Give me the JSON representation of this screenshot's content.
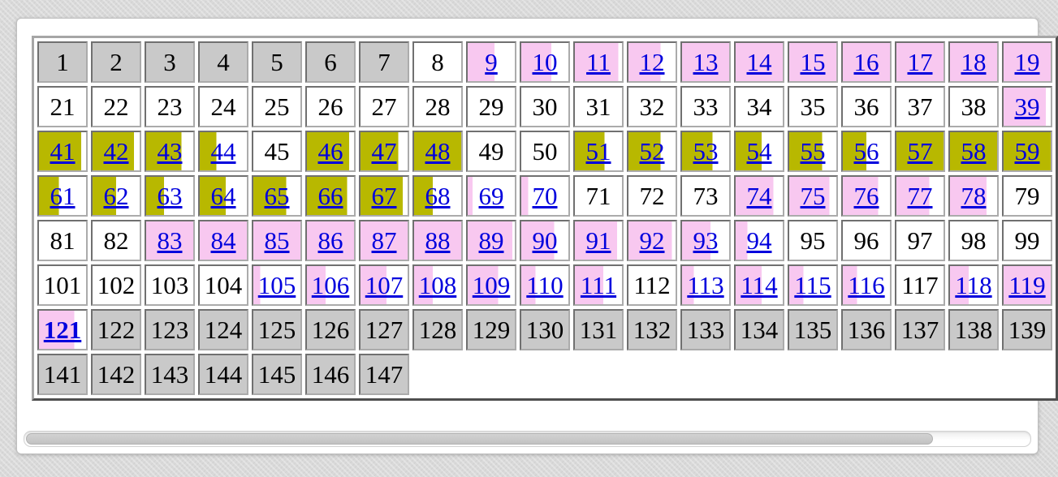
{
  "colors": {
    "gray": "#c9c9c9",
    "white": "#ffffff",
    "olive": "#b8b800",
    "pink": "#f8c8f0",
    "link_blue": "#0000dd",
    "text_black": "#000000"
  },
  "scrollbar": {
    "orientation": "horizontal",
    "thumb_percent": 90,
    "position": "left"
  },
  "grid": {
    "visible_columns": 19,
    "rows": [
      {
        "cells": [
          {
            "n": "1",
            "bg": "gray",
            "fill": 100,
            "link": false
          },
          {
            "n": "2",
            "bg": "gray",
            "fill": 100,
            "link": false
          },
          {
            "n": "3",
            "bg": "gray",
            "fill": 100,
            "link": false
          },
          {
            "n": "4",
            "bg": "gray",
            "fill": 100,
            "link": false
          },
          {
            "n": "5",
            "bg": "gray",
            "fill": 100,
            "link": false
          },
          {
            "n": "6",
            "bg": "gray",
            "fill": 100,
            "link": false
          },
          {
            "n": "7",
            "bg": "gray",
            "fill": 100,
            "link": false
          },
          {
            "n": "8",
            "bg": "white",
            "fill": 100,
            "link": false
          },
          {
            "n": "9",
            "bg": "pink",
            "fill": 57,
            "link": true
          },
          {
            "n": "10",
            "bg": "pink",
            "fill": 64,
            "link": true
          },
          {
            "n": "11",
            "bg": "pink",
            "fill": 92,
            "link": true
          },
          {
            "n": "12",
            "bg": "pink",
            "fill": 68,
            "link": true
          },
          {
            "n": "13",
            "bg": "pink",
            "fill": 100,
            "link": true
          },
          {
            "n": "14",
            "bg": "pink",
            "fill": 100,
            "link": true
          },
          {
            "n": "15",
            "bg": "pink",
            "fill": 100,
            "link": true
          },
          {
            "n": "16",
            "bg": "pink",
            "fill": 100,
            "link": true
          },
          {
            "n": "17",
            "bg": "pink",
            "fill": 100,
            "link": true
          },
          {
            "n": "18",
            "bg": "pink",
            "fill": 100,
            "link": true
          },
          {
            "n": "19",
            "bg": "pink",
            "fill": 100,
            "link": true
          }
        ]
      },
      {
        "cells": [
          {
            "n": "21",
            "bg": "white",
            "fill": 100,
            "link": false
          },
          {
            "n": "22",
            "bg": "white",
            "fill": 100,
            "link": false
          },
          {
            "n": "23",
            "bg": "white",
            "fill": 100,
            "link": false
          },
          {
            "n": "24",
            "bg": "white",
            "fill": 100,
            "link": false
          },
          {
            "n": "25",
            "bg": "white",
            "fill": 100,
            "link": false
          },
          {
            "n": "26",
            "bg": "white",
            "fill": 100,
            "link": false
          },
          {
            "n": "27",
            "bg": "white",
            "fill": 100,
            "link": false
          },
          {
            "n": "28",
            "bg": "white",
            "fill": 100,
            "link": false
          },
          {
            "n": "29",
            "bg": "white",
            "fill": 100,
            "link": false
          },
          {
            "n": "30",
            "bg": "white",
            "fill": 100,
            "link": false
          },
          {
            "n": "31",
            "bg": "white",
            "fill": 100,
            "link": false
          },
          {
            "n": "32",
            "bg": "white",
            "fill": 100,
            "link": false
          },
          {
            "n": "33",
            "bg": "white",
            "fill": 100,
            "link": false
          },
          {
            "n": "34",
            "bg": "white",
            "fill": 100,
            "link": false
          },
          {
            "n": "35",
            "bg": "white",
            "fill": 100,
            "link": false
          },
          {
            "n": "36",
            "bg": "white",
            "fill": 100,
            "link": false
          },
          {
            "n": "37",
            "bg": "white",
            "fill": 100,
            "link": false
          },
          {
            "n": "38",
            "bg": "white",
            "fill": 100,
            "link": false
          },
          {
            "n": "39",
            "bg": "pink",
            "fill": 90,
            "link": true
          }
        ]
      },
      {
        "cells": [
          {
            "n": "41",
            "bg": "olive",
            "fill": 90,
            "link": true
          },
          {
            "n": "42",
            "bg": "olive",
            "fill": 88,
            "link": true
          },
          {
            "n": "43",
            "bg": "olive",
            "fill": 75,
            "link": true
          },
          {
            "n": "44",
            "bg": "olive",
            "fill": 35,
            "link": true
          },
          {
            "n": "45",
            "bg": "white",
            "fill": 100,
            "link": false
          },
          {
            "n": "46",
            "bg": "olive",
            "fill": 90,
            "link": true
          },
          {
            "n": "47",
            "bg": "olive",
            "fill": 80,
            "link": true
          },
          {
            "n": "48",
            "bg": "olive",
            "fill": 100,
            "link": true
          },
          {
            "n": "49",
            "bg": "white",
            "fill": 100,
            "link": false
          },
          {
            "n": "50",
            "bg": "white",
            "fill": 100,
            "link": false
          },
          {
            "n": "51",
            "bg": "olive",
            "fill": 63,
            "link": true
          },
          {
            "n": "52",
            "bg": "olive",
            "fill": 68,
            "link": true
          },
          {
            "n": "53",
            "bg": "olive",
            "fill": 65,
            "link": true
          },
          {
            "n": "54",
            "bg": "olive",
            "fill": 55,
            "link": true
          },
          {
            "n": "55",
            "bg": "olive",
            "fill": 70,
            "link": true
          },
          {
            "n": "56",
            "bg": "olive",
            "fill": 50,
            "link": true
          },
          {
            "n": "57",
            "bg": "olive",
            "fill": 100,
            "link": true
          },
          {
            "n": "58",
            "bg": "olive",
            "fill": 100,
            "link": true
          },
          {
            "n": "59",
            "bg": "olive",
            "fill": 100,
            "link": true
          }
        ]
      },
      {
        "cells": [
          {
            "n": "61",
            "bg": "olive",
            "fill": 42,
            "link": true
          },
          {
            "n": "62",
            "bg": "olive",
            "fill": 50,
            "link": true
          },
          {
            "n": "63",
            "bg": "olive",
            "fill": 38,
            "link": true
          },
          {
            "n": "64",
            "bg": "olive",
            "fill": 55,
            "link": true
          },
          {
            "n": "65",
            "bg": "olive",
            "fill": 70,
            "link": true
          },
          {
            "n": "66",
            "bg": "olive",
            "fill": 85,
            "link": true
          },
          {
            "n": "67",
            "bg": "olive",
            "fill": 90,
            "link": true
          },
          {
            "n": "68",
            "bg": "olive",
            "fill": 40,
            "link": true
          },
          {
            "n": "69",
            "bg": "pink",
            "fill": 10,
            "link": true
          },
          {
            "n": "70",
            "bg": "pink",
            "fill": 15,
            "link": true
          },
          {
            "n": "71",
            "bg": "white",
            "fill": 100,
            "link": false
          },
          {
            "n": "72",
            "bg": "white",
            "fill": 100,
            "link": false
          },
          {
            "n": "73",
            "bg": "white",
            "fill": 100,
            "link": false
          },
          {
            "n": "74",
            "bg": "pink",
            "fill": 80,
            "link": true
          },
          {
            "n": "75",
            "bg": "pink",
            "fill": 85,
            "link": true
          },
          {
            "n": "76",
            "bg": "pink",
            "fill": 75,
            "link": true
          },
          {
            "n": "77",
            "bg": "pink",
            "fill": 70,
            "link": true
          },
          {
            "n": "78",
            "bg": "pink",
            "fill": 78,
            "link": true
          },
          {
            "n": "79",
            "bg": "white",
            "fill": 100,
            "link": false
          }
        ]
      },
      {
        "cells": [
          {
            "n": "81",
            "bg": "white",
            "fill": 100,
            "link": false
          },
          {
            "n": "82",
            "bg": "white",
            "fill": 100,
            "link": false
          },
          {
            "n": "83",
            "bg": "pink",
            "fill": 100,
            "link": true
          },
          {
            "n": "84",
            "bg": "pink",
            "fill": 100,
            "link": true
          },
          {
            "n": "85",
            "bg": "pink",
            "fill": 100,
            "link": true
          },
          {
            "n": "86",
            "bg": "pink",
            "fill": 100,
            "link": true
          },
          {
            "n": "87",
            "bg": "pink",
            "fill": 100,
            "link": true
          },
          {
            "n": "88",
            "bg": "pink",
            "fill": 100,
            "link": true
          },
          {
            "n": "89",
            "bg": "pink",
            "fill": 95,
            "link": true
          },
          {
            "n": "90",
            "bg": "pink",
            "fill": 70,
            "link": true
          },
          {
            "n": "91",
            "bg": "pink",
            "fill": 90,
            "link": true
          },
          {
            "n": "92",
            "bg": "pink",
            "fill": 92,
            "link": true
          },
          {
            "n": "93",
            "bg": "pink",
            "fill": 60,
            "link": true
          },
          {
            "n": "94",
            "bg": "pink",
            "fill": 25,
            "link": true
          },
          {
            "n": "95",
            "bg": "white",
            "fill": 100,
            "link": false
          },
          {
            "n": "96",
            "bg": "white",
            "fill": 100,
            "link": false
          },
          {
            "n": "97",
            "bg": "white",
            "fill": 100,
            "link": false
          },
          {
            "n": "98",
            "bg": "white",
            "fill": 100,
            "link": false
          },
          {
            "n": "99",
            "bg": "white",
            "fill": 100,
            "link": false
          }
        ]
      },
      {
        "cells": [
          {
            "n": "101",
            "bg": "white",
            "fill": 100,
            "link": false
          },
          {
            "n": "102",
            "bg": "white",
            "fill": 100,
            "link": false
          },
          {
            "n": "103",
            "bg": "white",
            "fill": 100,
            "link": false
          },
          {
            "n": "104",
            "bg": "white",
            "fill": 100,
            "link": false
          },
          {
            "n": "105",
            "bg": "pink",
            "fill": 15,
            "link": true
          },
          {
            "n": "106",
            "bg": "pink",
            "fill": 40,
            "link": true
          },
          {
            "n": "107",
            "bg": "pink",
            "fill": 55,
            "link": true
          },
          {
            "n": "108",
            "bg": "pink",
            "fill": 40,
            "link": true
          },
          {
            "n": "109",
            "bg": "pink",
            "fill": 65,
            "link": true
          },
          {
            "n": "110",
            "bg": "pink",
            "fill": 30,
            "link": true
          },
          {
            "n": "111",
            "bg": "pink",
            "fill": 60,
            "link": true
          },
          {
            "n": "112",
            "bg": "white",
            "fill": 100,
            "link": false
          },
          {
            "n": "113",
            "bg": "pink",
            "fill": 25,
            "link": true
          },
          {
            "n": "114",
            "bg": "pink",
            "fill": 55,
            "link": true
          },
          {
            "n": "115",
            "bg": "pink",
            "fill": 30,
            "link": true
          },
          {
            "n": "116",
            "bg": "pink",
            "fill": 30,
            "link": true
          },
          {
            "n": "117",
            "bg": "white",
            "fill": 100,
            "link": false
          },
          {
            "n": "118",
            "bg": "pink",
            "fill": 40,
            "link": true
          },
          {
            "n": "119",
            "bg": "pink",
            "fill": 100,
            "link": true
          }
        ]
      },
      {
        "cells": [
          {
            "n": "121",
            "bg": "pink",
            "fill": 75,
            "link": true,
            "bold": true
          },
          {
            "n": "122",
            "bg": "gray",
            "fill": 100,
            "link": false
          },
          {
            "n": "123",
            "bg": "gray",
            "fill": 100,
            "link": false
          },
          {
            "n": "124",
            "bg": "gray",
            "fill": 100,
            "link": false
          },
          {
            "n": "125",
            "bg": "gray",
            "fill": 100,
            "link": false
          },
          {
            "n": "126",
            "bg": "gray",
            "fill": 100,
            "link": false
          },
          {
            "n": "127",
            "bg": "gray",
            "fill": 100,
            "link": false
          },
          {
            "n": "128",
            "bg": "gray",
            "fill": 100,
            "link": false
          },
          {
            "n": "129",
            "bg": "gray",
            "fill": 100,
            "link": false
          },
          {
            "n": "130",
            "bg": "gray",
            "fill": 100,
            "link": false
          },
          {
            "n": "131",
            "bg": "gray",
            "fill": 100,
            "link": false
          },
          {
            "n": "132",
            "bg": "gray",
            "fill": 100,
            "link": false
          },
          {
            "n": "133",
            "bg": "gray",
            "fill": 100,
            "link": false
          },
          {
            "n": "134",
            "bg": "gray",
            "fill": 100,
            "link": false
          },
          {
            "n": "135",
            "bg": "gray",
            "fill": 100,
            "link": false
          },
          {
            "n": "136",
            "bg": "gray",
            "fill": 100,
            "link": false
          },
          {
            "n": "137",
            "bg": "gray",
            "fill": 100,
            "link": false
          },
          {
            "n": "138",
            "bg": "gray",
            "fill": 100,
            "link": false
          },
          {
            "n": "139",
            "bg": "gray",
            "fill": 100,
            "link": false
          }
        ]
      },
      {
        "cells": [
          {
            "n": "141",
            "bg": "gray",
            "fill": 100,
            "link": false
          },
          {
            "n": "142",
            "bg": "gray",
            "fill": 100,
            "link": false
          },
          {
            "n": "143",
            "bg": "gray",
            "fill": 100,
            "link": false
          },
          {
            "n": "144",
            "bg": "gray",
            "fill": 100,
            "link": false
          },
          {
            "n": "145",
            "bg": "gray",
            "fill": 100,
            "link": false
          },
          {
            "n": "146",
            "bg": "gray",
            "fill": 100,
            "link": false
          },
          {
            "n": "147",
            "bg": "gray",
            "fill": 100,
            "link": false
          }
        ]
      }
    ]
  }
}
